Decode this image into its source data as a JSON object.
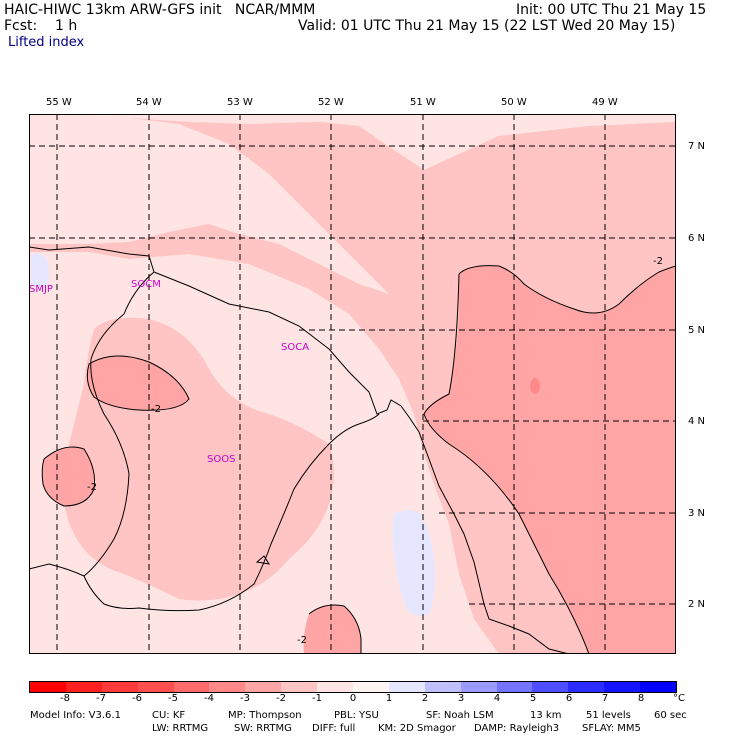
{
  "header": {
    "title": "HAIC-HIWC 13km ARW-GFS init   NCAR/MMM",
    "init": "Init: 00 UTC Thu 21 May 15",
    "fcst": "Fcst:    1 h",
    "valid": "Valid: 01 UTC Thu 21 May 15 (22 LST Wed 20 May 15)",
    "field": "Lifted index"
  },
  "map": {
    "lon_labels": [
      "55 W",
      "54 W",
      "53 W",
      "52 W",
      "51 W",
      "50 W",
      "49 W"
    ],
    "lat_labels": [
      "7 N",
      "6 N",
      "5 N",
      "4 N",
      "3 N",
      "2 N"
    ],
    "stations": [
      "SMJP",
      "SOCM",
      "SOCA",
      "SOOS"
    ],
    "contour_labels": [
      "-2",
      "-2",
      "-2",
      "-2"
    ]
  },
  "colorbar": {
    "labels": [
      "-8",
      "-7",
      "-6",
      "-5",
      "-4",
      "-3",
      "-2",
      "-1",
      "0",
      "1",
      "2",
      "3",
      "4",
      "5",
      "6",
      "7",
      "8"
    ],
    "unit": "°C",
    "colors": [
      "#ff0000",
      "#ff2020",
      "#ff3a3a",
      "#ff5050",
      "#ff6a6a",
      "#ff8888",
      "#ffa5a5",
      "#ffc4c4",
      "#ffe4e4",
      "#fff4f4",
      "#e6e6ff",
      "#c0c0ff",
      "#9a9aff",
      "#7474ff",
      "#4e4eff",
      "#2c2cff",
      "#1414ff",
      "#0000ff"
    ]
  },
  "footer": {
    "line1": [
      "Model Info: V3.6.1",
      "CU: KF",
      "MP: Thompson",
      "PBL: YSU",
      "SF: Noah LSM",
      "13 km",
      "51 levels",
      "60 sec"
    ],
    "line2": [
      "LW: RRTMG",
      "SW: RRTMG",
      "DIFF: full",
      "KM: 2D Smagor",
      "DAMP: Rayleigh3",
      "SFLAY: MM5"
    ]
  }
}
